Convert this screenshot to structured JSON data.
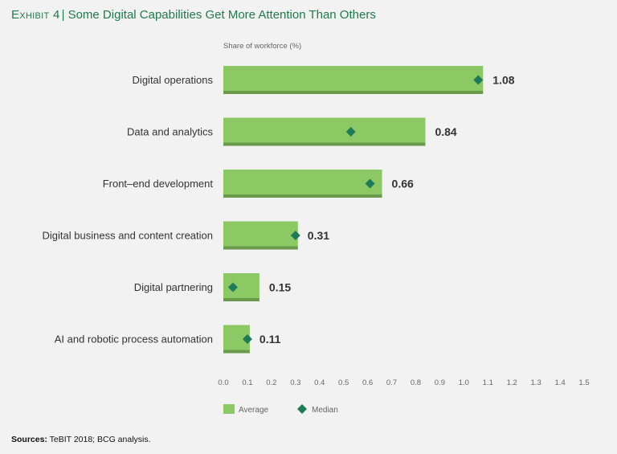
{
  "header": {
    "exhibit": "Exhibit 4",
    "separator": "|",
    "title": "Some Digital Capabilities Get More Attention Than Others"
  },
  "chart_data": {
    "type": "bar",
    "orientation": "horizontal",
    "axis_title": "Share of workforce (%)",
    "categories": [
      "Digital operations",
      "Data and analytics",
      "Front–end development",
      "Digital business and content creation",
      "Digital partnering",
      "AI and robotic process automation"
    ],
    "series": [
      {
        "name": "Average",
        "values": [
          1.08,
          0.84,
          0.66,
          0.31,
          0.15,
          0.11
        ],
        "labels": [
          "1.08",
          "0.84",
          "0.66",
          "0.31",
          "0.15",
          "0.11"
        ]
      },
      {
        "name": "Median",
        "values": [
          1.06,
          0.53,
          0.61,
          0.3,
          0.04,
          0.1
        ]
      }
    ],
    "xlim": [
      0,
      1.5
    ],
    "xticks": [
      0,
      0.1,
      0.2,
      0.3,
      0.4,
      0.5,
      0.6,
      0.7,
      0.8,
      0.9,
      1.0,
      1.1,
      1.2,
      1.3,
      1.4,
      1.5
    ],
    "xtick_labels": [
      "0.0",
      "0.1",
      "0.2",
      "0.3",
      "0.4",
      "0.5",
      "0.6",
      "0.7",
      "0.8",
      "0.9",
      "1.0",
      "1.1",
      "1.2",
      "1.3",
      "1.4",
      "1.5"
    ],
    "grid": false,
    "legend_position": "bottom-left",
    "colors": {
      "bar": "#8cc864",
      "bar_shadow": "#6a9a4c",
      "median": "#1e7b5a",
      "title": "#1e7b4b"
    }
  },
  "footer": {
    "sources_label": "Sources:",
    "sources_text": "TeBIT 2018; BCG analysis."
  }
}
